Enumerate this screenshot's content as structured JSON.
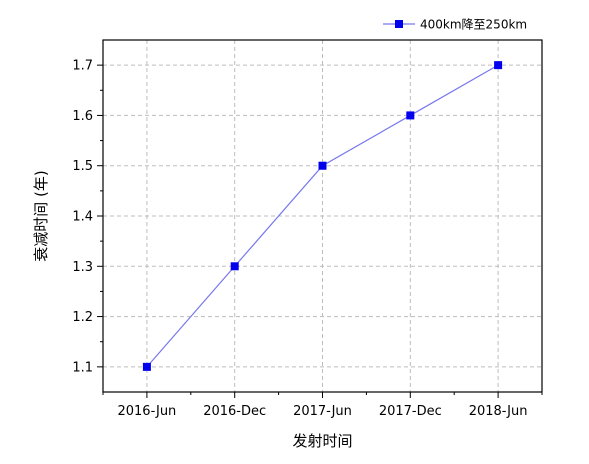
{
  "chart_data": {
    "type": "line",
    "categories": [
      "2016-Jun",
      "2016-Dec",
      "2017-Jun",
      "2017-Dec",
      "2018-Jun"
    ],
    "series": [
      {
        "name": "400km降至250km",
        "values": [
          1.1,
          1.3,
          1.5,
          1.6,
          1.7
        ],
        "color": "#0000ee",
        "line_color": "#7777ee",
        "marker": "square"
      }
    ],
    "xlabel": "发射时间",
    "ylabel": "衰减时间 (年)",
    "ylim": [
      1.05,
      1.75
    ],
    "yticks": [
      1.1,
      1.2,
      1.3,
      1.4,
      1.5,
      1.6,
      1.7
    ],
    "grid": true,
    "grid_style": "dashed",
    "legend_position": "top-right"
  }
}
